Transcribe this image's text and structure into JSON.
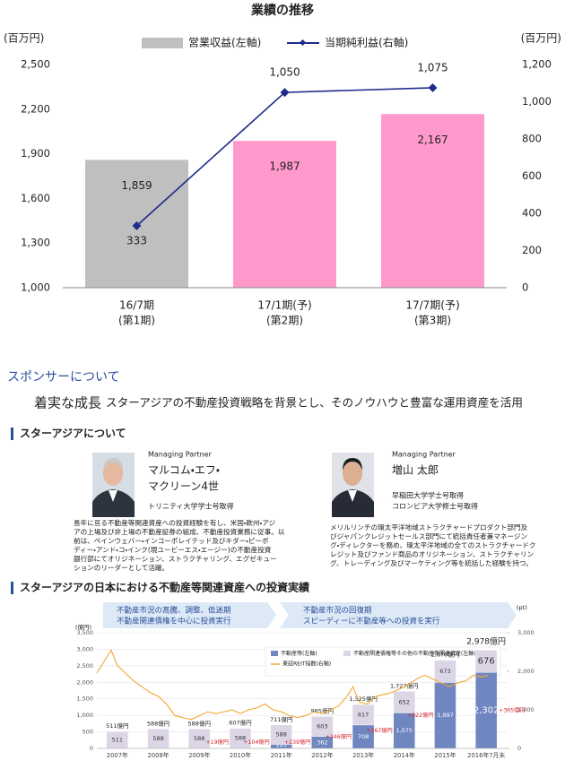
{
  "chart_data": [
    {
      "type": "bar_line",
      "title": "業績の推移",
      "y_label": "(百万円)",
      "y2_label": "(百万円)",
      "categories": [
        "16/7期",
        "17/1期(予)",
        "17/7期(予)"
      ],
      "category_sublabels": [
        "(第1期)",
        "(第2期)",
        "(第3期)"
      ],
      "series": [
        {
          "name": "営業収益(左軸)",
          "type": "bar",
          "colors": [
            "#bfbfbf",
            "#ff99cc",
            "#ff99cc"
          ],
          "values": [
            1859,
            1987,
            2167
          ],
          "value_labels": [
            "1,859",
            "1,987",
            "2,167"
          ]
        },
        {
          "name": "当期純利益(右軸)",
          "type": "line",
          "color": "#1f2a8a",
          "axis": "y2",
          "values": [
            333,
            1050,
            1075
          ],
          "value_labels": [
            "333",
            "1,050",
            "1,075"
          ]
        }
      ],
      "ylim": [
        1000,
        2500
      ],
      "yticks": [
        {
          "value": 1000,
          "label": "1,000"
        },
        {
          "value": 1300,
          "label": "1,300"
        },
        {
          "value": 1600,
          "label": "1,600"
        },
        {
          "value": 1900,
          "label": "1,900"
        },
        {
          "value": 2200,
          "label": "2,200"
        },
        {
          "value": 2500,
          "label": "2,500"
        }
      ],
      "y2lim": [
        0,
        1200
      ],
      "y2ticks": [
        0,
        200,
        400,
        600,
        800,
        {
          "value": 1000,
          "label": "1,000"
        },
        {
          "value": 1200,
          "label": "1,200"
        }
      ]
    },
    {
      "type": "stacked_bar_line",
      "y_label": "(億円)",
      "y2_label": "(pt)",
      "phases": [
        {
          "title": "不動産市況の高騰、調整、低迷期",
          "subtitle": "不動産関連債権を中心に投資実行"
        },
        {
          "title": "不動産市況の回復期",
          "subtitle": "スピーディーに不動産等への投資を実行"
        }
      ],
      "categories": [
        "2007年",
        "2008年",
        "2009年",
        "2010年",
        "2011年",
        "2012年",
        "2013年",
        "2014年",
        "2015年",
        "2016年7月末"
      ],
      "series": [
        {
          "name": "不動産等(左軸)",
          "color": "#6f86c0",
          "values": [
            0,
            0,
            0,
            19,
            123,
            362,
            708,
            1075,
            1997,
            2302
          ],
          "value_labels": [
            null,
            null,
            null,
            "19",
            "123",
            "362",
            "708",
            "1,075",
            "1,997",
            "2,302"
          ]
        },
        {
          "name": "不動産関連債権等その他の不動産等関連資産(左軸)",
          "color": "#dcd5e6",
          "values": [
            511,
            588,
            588,
            588,
            588,
            603,
            617,
            652,
            673,
            676
          ],
          "value_labels": [
            "511",
            "588",
            "588",
            "588",
            "588",
            "603",
            "617",
            "652",
            "673",
            "676"
          ]
        }
      ],
      "total_labels": [
        "511億円",
        "588億円",
        "588億円",
        "607億円",
        "711億円",
        "965億円",
        "1,325億円",
        "1,727億円",
        "2,670億円",
        "2,978億円"
      ],
      "increase_labels": [
        null,
        null,
        null,
        "+19億円",
        "+104億円",
        "+239億円",
        "+346億円",
        "+367億円",
        "+922億円",
        "+305億円"
      ],
      "line": {
        "name": "東証REIT指数(右軸)",
        "color": "#f0a830",
        "axis": "y2",
        "x": [
          2007.0,
          2007.2,
          2007.35,
          2007.5,
          2007.7,
          2007.9,
          2008.1,
          2008.3,
          2008.5,
          2008.7,
          2008.9,
          2009.1,
          2009.3,
          2009.5,
          2009.7,
          2009.9,
          2010.1,
          2010.3,
          2010.5,
          2010.7,
          2010.9,
          2011.1,
          2011.3,
          2011.5,
          2011.7,
          2011.9,
          2012.1,
          2012.3,
          2012.5,
          2012.7,
          2012.9,
          2013.1,
          2013.25,
          2013.4,
          2013.6,
          2013.8,
          2014.0,
          2014.2,
          2014.4,
          2014.6,
          2014.8,
          2015.0,
          2015.2,
          2015.4,
          2015.6,
          2015.8,
          2016.0,
          2016.2,
          2016.4,
          2016.55
        ],
        "values": [
          1950,
          2300,
          2550,
          2150,
          1950,
          1750,
          1600,
          1450,
          1350,
          1150,
          850,
          800,
          750,
          850,
          950,
          900,
          950,
          1000,
          900,
          1000,
          1050,
          1150,
          1000,
          950,
          850,
          800,
          850,
          950,
          900,
          1000,
          1100,
          1350,
          1600,
          1200,
          1150,
          1350,
          1400,
          1450,
          1550,
          1650,
          1800,
          1900,
          1800,
          1700,
          1600,
          1700,
          1750,
          1900,
          1850,
          1900
        ]
      },
      "xlim": [
        2007,
        2017
      ],
      "ylim": [
        0,
        3500
      ],
      "yticks": [
        0,
        500,
        {
          "value": 1000,
          "label": "1,000"
        },
        {
          "value": 1500,
          "label": "1,500"
        },
        {
          "value": 2000,
          "label": "2,000"
        },
        {
          "value": 2500,
          "label": "2,500"
        },
        {
          "value": 3000,
          "label": "3,000"
        },
        {
          "value": 3500,
          "label": "3,500"
        }
      ],
      "y2lim": [
        0,
        3000
      ],
      "y2ticks": [
        0,
        {
          "value": 1000,
          "label": "1,000"
        },
        {
          "value": 2000,
          "label": "2,000"
        },
        {
          "value": 3000,
          "label": "3,000"
        }
      ]
    }
  ],
  "sponsor": {
    "heading": "スポンサーについて",
    "tagline": "着実な成長",
    "tagline_text": "スターアジアの不動産投資戦略を背景とし、そのノウハウと豊富な運用資産を活用",
    "about_heading": "スターアジアについて",
    "people": [
      {
        "role": "Managing Partner",
        "name_lines": [
          "マルコム・エフ・",
          "マクリーン4世"
        ],
        "education": [
          "トリニティ大学学士号取得"
        ],
        "bio": [
          "長年に亘る不動産等関連資産への投資経験を有し、米国・欧州・アジ",
          "アの上場及び非上場の不動産証券の組成、不動産投資業務に従事。以",
          "前は、ペインウェバー・インコーポレイテッド及びキダー・ピーボ",
          "ディー・アンド・コ・インク(現ユービーエス・エージー)の不動産投資",
          "銀行部にてオリジネーション、ストラクチャリング、エグゼキュー",
          "ションのリーダーとして活躍。"
        ]
      },
      {
        "role": "Managing Partner",
        "name_lines": [
          "増山 太郎"
        ],
        "education": [
          "早稲田大学学士号取得",
          "コロンビア大学修士号取得"
        ],
        "bio": [
          "メリルリンチの環太平洋地域ストラクチャードプロダクト部門及",
          "びジャパンクレジットセールス部門にて統括責任者兼マネージン",
          "グ・ディレクターを務め、環太平洋地域の全てのストラクチャードク",
          "レジット及びファンド商品のオリジネーション、ストラクチャリン",
          "グ、トレーディング及びマーケティング等を統括した経験を持つ。"
        ]
      }
    ],
    "track_record_heading": "スターアジアの日本における不動産等関連資産への投資実績"
  }
}
